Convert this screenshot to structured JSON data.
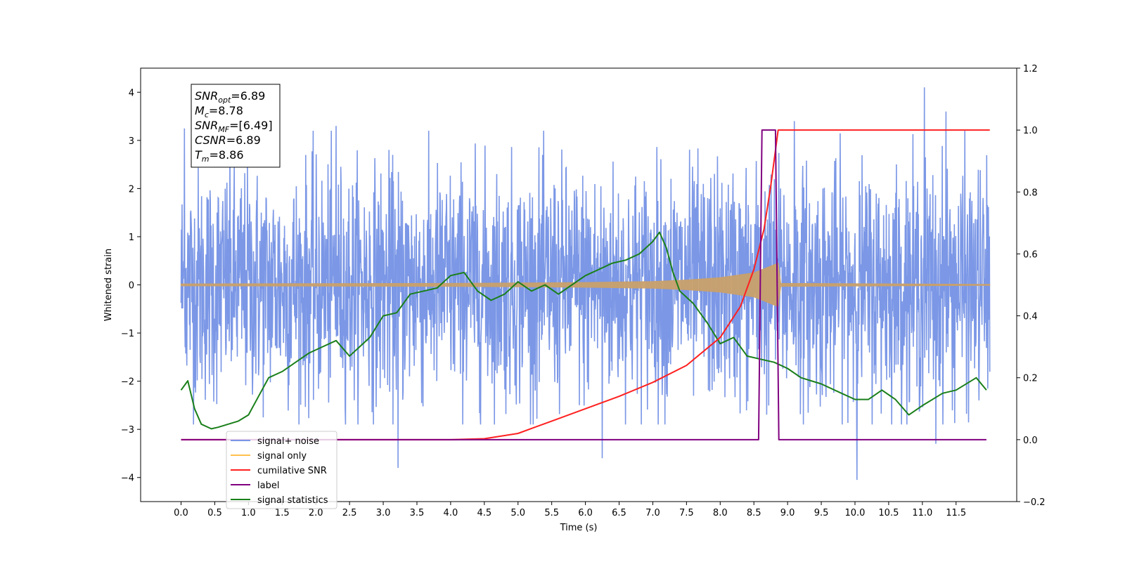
{
  "chart_data": {
    "type": "line",
    "xlabel": "Time (s)",
    "ylabel": "Whitened strain",
    "xlim": [
      -0.6,
      12.4
    ],
    "ylim": [
      -4.5,
      4.5
    ],
    "y2lim": [
      -0.2,
      1.2
    ],
    "xticks": [
      "0.0",
      "0.5",
      "1.0",
      "1.5",
      "2.0",
      "2.5",
      "3.0",
      "3.5",
      "4.0",
      "4.5",
      "5.0",
      "5.5",
      "6.0",
      "6.5",
      "7.0",
      "7.5",
      "8.0",
      "8.5",
      "9.0",
      "9.5",
      "10.0",
      "10.5",
      "11.0",
      "11.5"
    ],
    "yticks": [
      "−4",
      "−3",
      "−2",
      "−1",
      "0",
      "1",
      "2",
      "3",
      "4"
    ],
    "y2ticks": [
      "−0.2",
      "0.0",
      "0.2",
      "0.4",
      "0.6",
      "0.8",
      "1.0",
      "1.2"
    ],
    "legend_placement": "bottom-left",
    "series": [
      {
        "name": "signal+ noise",
        "color": "#7b97e6",
        "style": "noise band",
        "x_range": [
          0,
          12
        ],
        "typical_abs": 1.6,
        "peak_positive": [
          [
            0.05,
            3.25
          ],
          [
            2.3,
            3.3
          ],
          [
            9.1,
            3.4
          ],
          [
            11.03,
            4.1
          ],
          [
            11.35,
            3.6
          ]
        ],
        "peak_negative": [
          [
            3.22,
            -3.8
          ],
          [
            6.25,
            -3.6
          ],
          [
            10.03,
            -4.05
          ],
          [
            11.2,
            -3.3
          ]
        ]
      },
      {
        "name": "signal only",
        "color": "#c9a06a",
        "style": "chirp envelope",
        "x": [
          0,
          4,
          6,
          7,
          7.5,
          8,
          8.5,
          8.86,
          8.9,
          12
        ],
        "y": [
          0.02,
          0.03,
          0.05,
          0.07,
          0.1,
          0.15,
          0.25,
          0.45,
          0.03,
          0.01
        ]
      },
      {
        "name": "cumilative SNR",
        "color": "#ff2020",
        "axis": "right",
        "x": [
          0,
          4.0,
          4.5,
          5.0,
          5.5,
          6.0,
          6.5,
          7.0,
          7.5,
          8.0,
          8.3,
          8.5,
          8.65,
          8.75,
          8.86,
          12.0
        ],
        "y": [
          0,
          0,
          0.003,
          0.02,
          0.06,
          0.1,
          0.14,
          0.185,
          0.24,
          0.33,
          0.43,
          0.55,
          0.68,
          0.82,
          1.0,
          1.0
        ]
      },
      {
        "name": "label",
        "color": "#800080",
        "axis": "right",
        "x": [
          0,
          8.57,
          8.62,
          8.82,
          8.87,
          11.95
        ],
        "y": [
          0,
          0,
          1,
          1,
          0,
          0
        ]
      },
      {
        "name": "signal statistics",
        "color": "#1a7f1a",
        "axis": "right",
        "x": [
          0,
          0.1,
          0.2,
          0.3,
          0.45,
          0.55,
          0.7,
          0.85,
          1.0,
          1.15,
          1.3,
          1.5,
          1.7,
          1.9,
          2.1,
          2.3,
          2.5,
          2.8,
          3.0,
          3.2,
          3.4,
          3.6,
          3.8,
          4.0,
          4.2,
          4.4,
          4.6,
          4.8,
          5.0,
          5.2,
          5.4,
          5.6,
          5.8,
          6.0,
          6.2,
          6.4,
          6.6,
          6.8,
          7.0,
          7.1,
          7.2,
          7.3,
          7.4,
          7.6,
          7.8,
          8.0,
          8.2,
          8.4,
          8.6,
          8.8,
          9.0,
          9.2,
          9.5,
          9.8,
          10.0,
          10.2,
          10.4,
          10.6,
          10.8,
          11.0,
          11.3,
          11.5,
          11.8,
          11.95
        ],
        "y": [
          0.16,
          0.19,
          0.1,
          0.05,
          0.035,
          0.04,
          0.05,
          0.06,
          0.08,
          0.14,
          0.2,
          0.22,
          0.25,
          0.28,
          0.3,
          0.32,
          0.27,
          0.33,
          0.4,
          0.41,
          0.47,
          0.48,
          0.49,
          0.53,
          0.54,
          0.48,
          0.45,
          0.47,
          0.51,
          0.48,
          0.5,
          0.47,
          0.5,
          0.53,
          0.55,
          0.57,
          0.58,
          0.6,
          0.64,
          0.67,
          0.62,
          0.54,
          0.48,
          0.44,
          0.38,
          0.31,
          0.33,
          0.27,
          0.26,
          0.25,
          0.23,
          0.2,
          0.18,
          0.15,
          0.13,
          0.13,
          0.16,
          0.13,
          0.08,
          0.11,
          0.15,
          0.16,
          0.2,
          0.16
        ]
      }
    ],
    "annotation": {
      "lines": [
        {
          "label": "SNR",
          "sub": "opt",
          "value": "=6.89"
        },
        {
          "label": "M",
          "sub": "c",
          "value": "=8.78"
        },
        {
          "label": "SNR",
          "sub": "MF",
          "value": "=[6.49]"
        },
        {
          "label": "CSNR",
          "sub": "",
          "value": "=6.89"
        },
        {
          "label": "T",
          "sub": "m",
          "value": "=8.86"
        }
      ]
    },
    "legend": [
      {
        "name": "signal+ noise",
        "color": "#7b97e6"
      },
      {
        "name": "signal only",
        "color": "#ffc04d"
      },
      {
        "name": "cumilative SNR",
        "color": "#ff2020"
      },
      {
        "name": "label",
        "color": "#800080"
      },
      {
        "name": "signal statistics",
        "color": "#1a7f1a"
      }
    ]
  }
}
